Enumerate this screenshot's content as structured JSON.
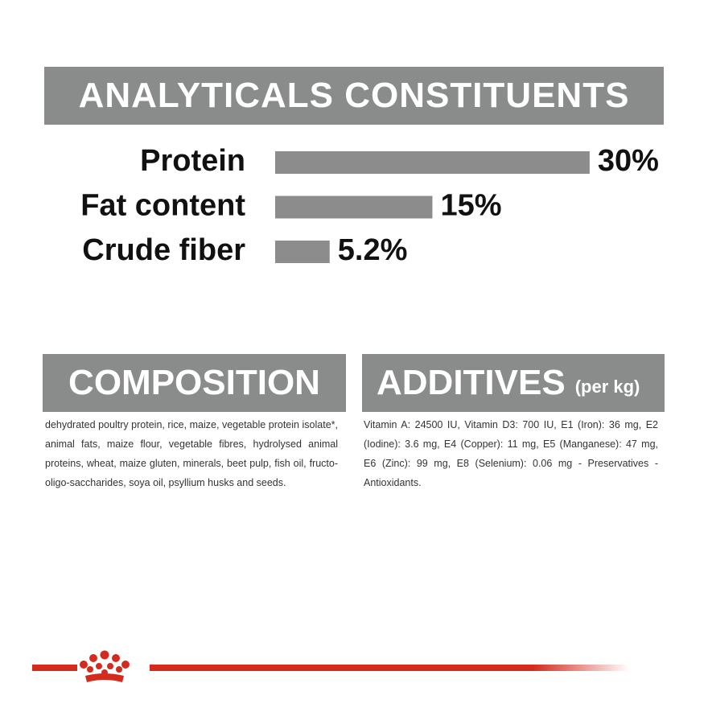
{
  "header": {
    "title": "ANALYTICALS CONSTITUENTS"
  },
  "chart_data": {
    "type": "bar",
    "orientation": "horizontal",
    "color": "#8c8c8c",
    "categories": [
      "Protein",
      "Fat content",
      "Crude fiber"
    ],
    "values": [
      30,
      15,
      5.2
    ],
    "value_labels": [
      "30%",
      "15%",
      "5.2%"
    ]
  },
  "composition": {
    "title": "COMPOSITION",
    "text": "dehydrated poultry protein, rice, maize, vegetable protein isolate*, animal fats, maize flour, vegetable fibres, hydrolysed animal proteins, wheat, maize gluten, minerals, beet pulp, fish oil, fructo-oligo-saccharides, soya oil, psyllium husks and seeds."
  },
  "additives": {
    "title": "ADDITIVES",
    "subtitle": "(per kg)",
    "text": "Vitamin A: 24500 IU, Vitamin D3: 700 IU, E1 (Iron): 36 mg, E2 (Iodine): 3.6 mg, E4 (Copper): 11 mg, E5 (Manganese): 47 mg, E6 (Zinc): 99 mg, E8 (Selenium): 0.06 mg - Preservatives - Antioxidants."
  }
}
